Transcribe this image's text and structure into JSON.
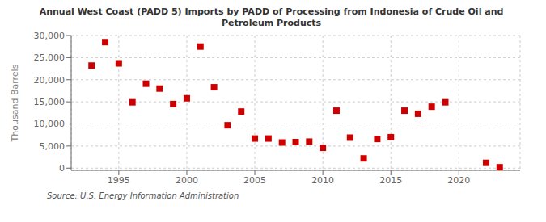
{
  "chart_data": {
    "type": "scatter",
    "title": "Annual West Coast (PADD 5) Imports by PADD of Processing from Indonesia of Crude Oil and\nPetroleum Products",
    "y_label": "Thousand Barrels",
    "annotation": "Source: U.S. Energy Information Administration",
    "x": [
      1993,
      1994,
      1995,
      1996,
      1997,
      1998,
      1999,
      2000,
      2001,
      2002,
      2003,
      2004,
      2005,
      2006,
      2007,
      2008,
      2009,
      2010,
      2011,
      2012,
      2013,
      2014,
      2015,
      2016,
      2017,
      2018,
      2019,
      2022,
      2023
    ],
    "values": [
      23200,
      28500,
      23700,
      14900,
      19100,
      18000,
      14500,
      15800,
      27500,
      18300,
      9700,
      12800,
      6700,
      6700,
      5800,
      5900,
      6000,
      4600,
      13000,
      6900,
      2200,
      6600,
      7000,
      13000,
      12300,
      13900,
      14900,
      1200,
      200
    ],
    "color": "#cc0000",
    "marker": "square",
    "xlim": [
      1991.5,
      2024.5
    ],
    "ylim": [
      -500,
      30000
    ],
    "xticks": [
      1995,
      2000,
      2005,
      2010,
      2015,
      2020
    ],
    "yticks": [
      0,
      {
        "value": 5000,
        "label": "5,000"
      },
      {
        "value": 10000,
        "label": "10,000"
      },
      {
        "value": 15000,
        "label": "15,000"
      },
      {
        "value": 20000,
        "label": "20,000"
      },
      {
        "value": 25000,
        "label": "25,000"
      },
      {
        "value": 30000,
        "label": "30,000"
      }
    ],
    "grid": true
  }
}
